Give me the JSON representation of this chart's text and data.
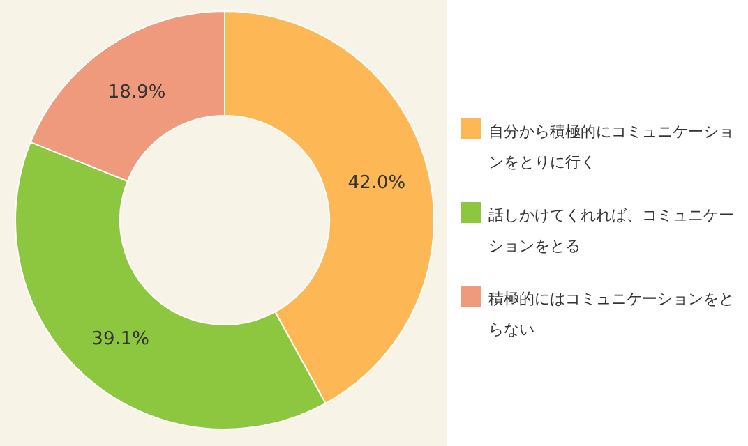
{
  "chart_data": {
    "type": "donut",
    "categories": [
      "自分から積極的にコミュニケーションをとりに行く",
      "話しかけてくれれば、コミュニケーションをとる",
      "積極的にはコミュニケーションをとらない"
    ],
    "values": [
      42.0,
      39.1,
      18.9
    ],
    "colors": [
      "#fdb855",
      "#8dc63f",
      "#ef9a7c"
    ],
    "value_labels": [
      "42.0%",
      "39.1%",
      "18.9%"
    ],
    "legend": "right"
  }
}
